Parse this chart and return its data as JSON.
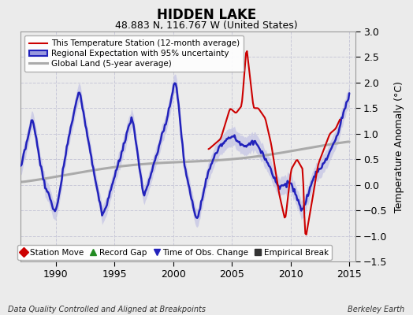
{
  "title": "HIDDEN LAKE",
  "subtitle": "48.883 N, 116.767 W (United States)",
  "ylabel": "Temperature Anomaly (°C)",
  "footer_left": "Data Quality Controlled and Aligned at Breakpoints",
  "footer_right": "Berkeley Earth",
  "xlim": [
    1987.0,
    2015.5
  ],
  "ylim": [
    -1.5,
    3.0
  ],
  "yticks": [
    -1.5,
    -1.0,
    -0.5,
    0.0,
    0.5,
    1.0,
    1.5,
    2.0,
    2.5,
    3.0
  ],
  "xticks": [
    1990,
    1995,
    2000,
    2005,
    2010,
    2015
  ],
  "bg_color": "#ebebeb",
  "plot_bg_color": "#ebebeb",
  "grid_color": "#c8c8d8",
  "station_color": "#cc0000",
  "regional_color": "#2222bb",
  "global_color": "#aaaaaa",
  "regional_band_color": "#9999dd",
  "regional_band_alpha": 0.35,
  "legend1_entries": [
    {
      "label": "This Temperature Station (12-month average)",
      "color": "#cc0000",
      "lw": 1.5
    },
    {
      "label": "Regional Expectation with 95% uncertainty",
      "color": "#2222bb",
      "lw": 1.8
    },
    {
      "label": "Global Land (5-year average)",
      "color": "#aaaaaa",
      "lw": 2.2
    }
  ],
  "legend2_entries": [
    {
      "label": "Station Move",
      "color": "#cc0000",
      "marker": "D"
    },
    {
      "label": "Record Gap",
      "color": "#228B22",
      "marker": "^"
    },
    {
      "label": "Time of Obs. Change",
      "color": "#2222bb",
      "marker": "v"
    },
    {
      "label": "Empirical Break",
      "color": "#333333",
      "marker": "s"
    }
  ]
}
